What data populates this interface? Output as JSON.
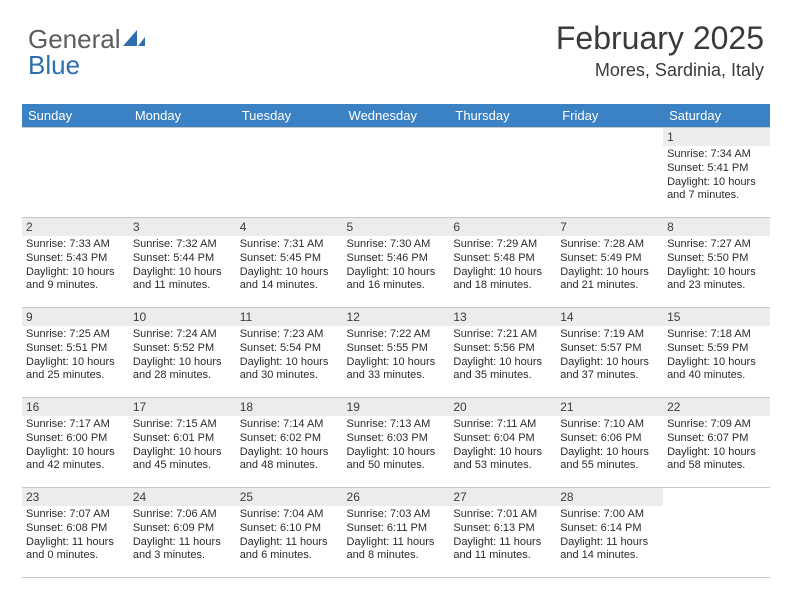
{
  "brand": {
    "part1": "General",
    "part2": "Blue"
  },
  "title": "February 2025",
  "subtitle": "Mores, Sardinia, Italy",
  "colors": {
    "header_bg": "#3b82c4",
    "header_text": "#ffffff",
    "daynum_bg": "#ececec",
    "border": "#c7c7c7",
    "body_text": "#2b2b2b",
    "logo_gray": "#5d5d5d",
    "logo_blue": "#2f6fb0"
  },
  "weekdays": [
    "Sunday",
    "Monday",
    "Tuesday",
    "Wednesday",
    "Thursday",
    "Friday",
    "Saturday"
  ],
  "weeks": [
    [
      null,
      null,
      null,
      null,
      null,
      null,
      {
        "d": "1",
        "sr": "Sunrise: 7:34 AM",
        "ss": "Sunset: 5:41 PM",
        "dl1": "Daylight: 10 hours",
        "dl2": "and 7 minutes."
      }
    ],
    [
      {
        "d": "2",
        "sr": "Sunrise: 7:33 AM",
        "ss": "Sunset: 5:43 PM",
        "dl1": "Daylight: 10 hours",
        "dl2": "and 9 minutes."
      },
      {
        "d": "3",
        "sr": "Sunrise: 7:32 AM",
        "ss": "Sunset: 5:44 PM",
        "dl1": "Daylight: 10 hours",
        "dl2": "and 11 minutes."
      },
      {
        "d": "4",
        "sr": "Sunrise: 7:31 AM",
        "ss": "Sunset: 5:45 PM",
        "dl1": "Daylight: 10 hours",
        "dl2": "and 14 minutes."
      },
      {
        "d": "5",
        "sr": "Sunrise: 7:30 AM",
        "ss": "Sunset: 5:46 PM",
        "dl1": "Daylight: 10 hours",
        "dl2": "and 16 minutes."
      },
      {
        "d": "6",
        "sr": "Sunrise: 7:29 AM",
        "ss": "Sunset: 5:48 PM",
        "dl1": "Daylight: 10 hours",
        "dl2": "and 18 minutes."
      },
      {
        "d": "7",
        "sr": "Sunrise: 7:28 AM",
        "ss": "Sunset: 5:49 PM",
        "dl1": "Daylight: 10 hours",
        "dl2": "and 21 minutes."
      },
      {
        "d": "8",
        "sr": "Sunrise: 7:27 AM",
        "ss": "Sunset: 5:50 PM",
        "dl1": "Daylight: 10 hours",
        "dl2": "and 23 minutes."
      }
    ],
    [
      {
        "d": "9",
        "sr": "Sunrise: 7:25 AM",
        "ss": "Sunset: 5:51 PM",
        "dl1": "Daylight: 10 hours",
        "dl2": "and 25 minutes."
      },
      {
        "d": "10",
        "sr": "Sunrise: 7:24 AM",
        "ss": "Sunset: 5:52 PM",
        "dl1": "Daylight: 10 hours",
        "dl2": "and 28 minutes."
      },
      {
        "d": "11",
        "sr": "Sunrise: 7:23 AM",
        "ss": "Sunset: 5:54 PM",
        "dl1": "Daylight: 10 hours",
        "dl2": "and 30 minutes."
      },
      {
        "d": "12",
        "sr": "Sunrise: 7:22 AM",
        "ss": "Sunset: 5:55 PM",
        "dl1": "Daylight: 10 hours",
        "dl2": "and 33 minutes."
      },
      {
        "d": "13",
        "sr": "Sunrise: 7:21 AM",
        "ss": "Sunset: 5:56 PM",
        "dl1": "Daylight: 10 hours",
        "dl2": "and 35 minutes."
      },
      {
        "d": "14",
        "sr": "Sunrise: 7:19 AM",
        "ss": "Sunset: 5:57 PM",
        "dl1": "Daylight: 10 hours",
        "dl2": "and 37 minutes."
      },
      {
        "d": "15",
        "sr": "Sunrise: 7:18 AM",
        "ss": "Sunset: 5:59 PM",
        "dl1": "Daylight: 10 hours",
        "dl2": "and 40 minutes."
      }
    ],
    [
      {
        "d": "16",
        "sr": "Sunrise: 7:17 AM",
        "ss": "Sunset: 6:00 PM",
        "dl1": "Daylight: 10 hours",
        "dl2": "and 42 minutes."
      },
      {
        "d": "17",
        "sr": "Sunrise: 7:15 AM",
        "ss": "Sunset: 6:01 PM",
        "dl1": "Daylight: 10 hours",
        "dl2": "and 45 minutes."
      },
      {
        "d": "18",
        "sr": "Sunrise: 7:14 AM",
        "ss": "Sunset: 6:02 PM",
        "dl1": "Daylight: 10 hours",
        "dl2": "and 48 minutes."
      },
      {
        "d": "19",
        "sr": "Sunrise: 7:13 AM",
        "ss": "Sunset: 6:03 PM",
        "dl1": "Daylight: 10 hours",
        "dl2": "and 50 minutes."
      },
      {
        "d": "20",
        "sr": "Sunrise: 7:11 AM",
        "ss": "Sunset: 6:04 PM",
        "dl1": "Daylight: 10 hours",
        "dl2": "and 53 minutes."
      },
      {
        "d": "21",
        "sr": "Sunrise: 7:10 AM",
        "ss": "Sunset: 6:06 PM",
        "dl1": "Daylight: 10 hours",
        "dl2": "and 55 minutes."
      },
      {
        "d": "22",
        "sr": "Sunrise: 7:09 AM",
        "ss": "Sunset: 6:07 PM",
        "dl1": "Daylight: 10 hours",
        "dl2": "and 58 minutes."
      }
    ],
    [
      {
        "d": "23",
        "sr": "Sunrise: 7:07 AM",
        "ss": "Sunset: 6:08 PM",
        "dl1": "Daylight: 11 hours",
        "dl2": "and 0 minutes."
      },
      {
        "d": "24",
        "sr": "Sunrise: 7:06 AM",
        "ss": "Sunset: 6:09 PM",
        "dl1": "Daylight: 11 hours",
        "dl2": "and 3 minutes."
      },
      {
        "d": "25",
        "sr": "Sunrise: 7:04 AM",
        "ss": "Sunset: 6:10 PM",
        "dl1": "Daylight: 11 hours",
        "dl2": "and 6 minutes."
      },
      {
        "d": "26",
        "sr": "Sunrise: 7:03 AM",
        "ss": "Sunset: 6:11 PM",
        "dl1": "Daylight: 11 hours",
        "dl2": "and 8 minutes."
      },
      {
        "d": "27",
        "sr": "Sunrise: 7:01 AM",
        "ss": "Sunset: 6:13 PM",
        "dl1": "Daylight: 11 hours",
        "dl2": "and 11 minutes."
      },
      {
        "d": "28",
        "sr": "Sunrise: 7:00 AM",
        "ss": "Sunset: 6:14 PM",
        "dl1": "Daylight: 11 hours",
        "dl2": "and 14 minutes."
      },
      null
    ]
  ]
}
